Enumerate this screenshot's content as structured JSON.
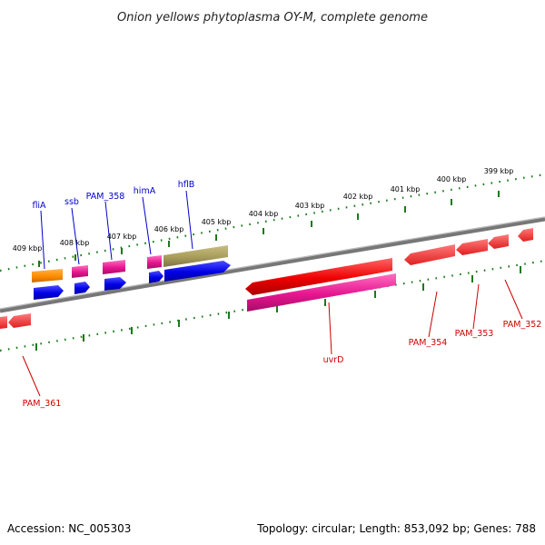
{
  "title": "Onion yellows phytoplasma OY-M, complete genome",
  "footer": {
    "accession": "Accession: NC_005303",
    "summary": "Topology: circular; Length: 853,092 bp; Genes: 788"
  },
  "ticks": [
    "399 kbp",
    "400 kbp",
    "401 kbp",
    "402 kbp",
    "403 kbp",
    "404 kbp",
    "405 kbp",
    "406 kbp",
    "407 kbp",
    "408 kbp",
    "409 kbp"
  ],
  "genes": {
    "fliA": "fliA",
    "ssb": "ssb",
    "PAM_358": "PAM_358",
    "himA": "himA",
    "hflB": "hflB",
    "uvrD": "uvrD",
    "PAM_354": "PAM_354",
    "PAM_353": "PAM_353",
    "PAM_352": "PAM_352",
    "PAM_361": "PAM_361"
  },
  "colors": {
    "orange": "#ff8c00",
    "pink": "#e6158f",
    "blue": "#0000e6",
    "olive": "#a89c5a",
    "red": "#ee0000",
    "backbone": "#888888",
    "tick": "#1a7a1a"
  }
}
